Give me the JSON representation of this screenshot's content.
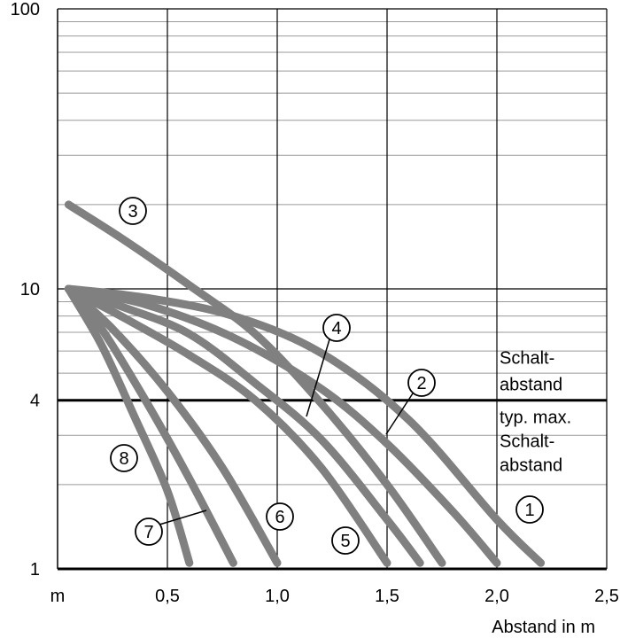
{
  "chart_data": {
    "type": "line",
    "xlabel": "Abstand in m",
    "x_unit_label": "m",
    "ylabel": "",
    "x_scale": "linear",
    "y_scale": "log",
    "xlim": [
      0,
      2.5
    ],
    "ylim": [
      1,
      100
    ],
    "x_ticks": [
      "0,5",
      "1,0",
      "1,5",
      "2,0",
      "2,5"
    ],
    "y_ticks": [
      "1",
      "4",
      "10",
      "100"
    ],
    "grid": true,
    "reference_line": {
      "y": 4,
      "label_above": [
        "Schalt-",
        "abstand"
      ],
      "label_below": [
        "typ. max.",
        "Schalt-",
        "abstand"
      ]
    },
    "series": [
      {
        "name": "1",
        "x": [
          0.05,
          0.4,
          0.8,
          1.2,
          1.6,
          2.0,
          2.2
        ],
        "y": [
          10,
          9.3,
          8.0,
          5.9,
          3.4,
          1.5,
          1.05
        ]
      },
      {
        "name": "2",
        "x": [
          0.05,
          0.4,
          0.8,
          1.2,
          1.5,
          1.8,
          2.0
        ],
        "y": [
          10,
          8.8,
          6.7,
          4.4,
          2.8,
          1.6,
          1.05
        ]
      },
      {
        "name": "3",
        "x": [
          0.05,
          0.3,
          0.6,
          0.9,
          1.2,
          1.5,
          1.75
        ],
        "y": [
          20,
          15,
          10.3,
          6.9,
          3.9,
          2.0,
          1.05
        ]
      },
      {
        "name": "4",
        "x": [
          0.05,
          0.3,
          0.6,
          0.9,
          1.2,
          1.5,
          1.65
        ],
        "y": [
          10,
          8.6,
          6.9,
          4.6,
          2.9,
          1.5,
          1.05
        ]
      },
      {
        "name": "5",
        "x": [
          0.05,
          0.3,
          0.6,
          0.9,
          1.2,
          1.5
        ],
        "y": [
          10,
          7.9,
          5.8,
          4.0,
          2.3,
          1.05
        ]
      },
      {
        "name": "6",
        "x": [
          0.05,
          0.25,
          0.5,
          0.75,
          1.0
        ],
        "y": [
          10,
          7.2,
          4.3,
          2.3,
          1.05
        ]
      },
      {
        "name": "7",
        "x": [
          0.05,
          0.2,
          0.4,
          0.6,
          0.8
        ],
        "y": [
          10,
          7.2,
          4.0,
          2.1,
          1.05
        ]
      },
      {
        "name": "8",
        "x": [
          0.05,
          0.2,
          0.35,
          0.5,
          0.6
        ],
        "y": [
          10,
          6.3,
          3.5,
          1.9,
          1.05
        ]
      }
    ],
    "series_label_circles": [
      "1",
      "2",
      "3",
      "4",
      "5",
      "6",
      "7",
      "8"
    ]
  }
}
